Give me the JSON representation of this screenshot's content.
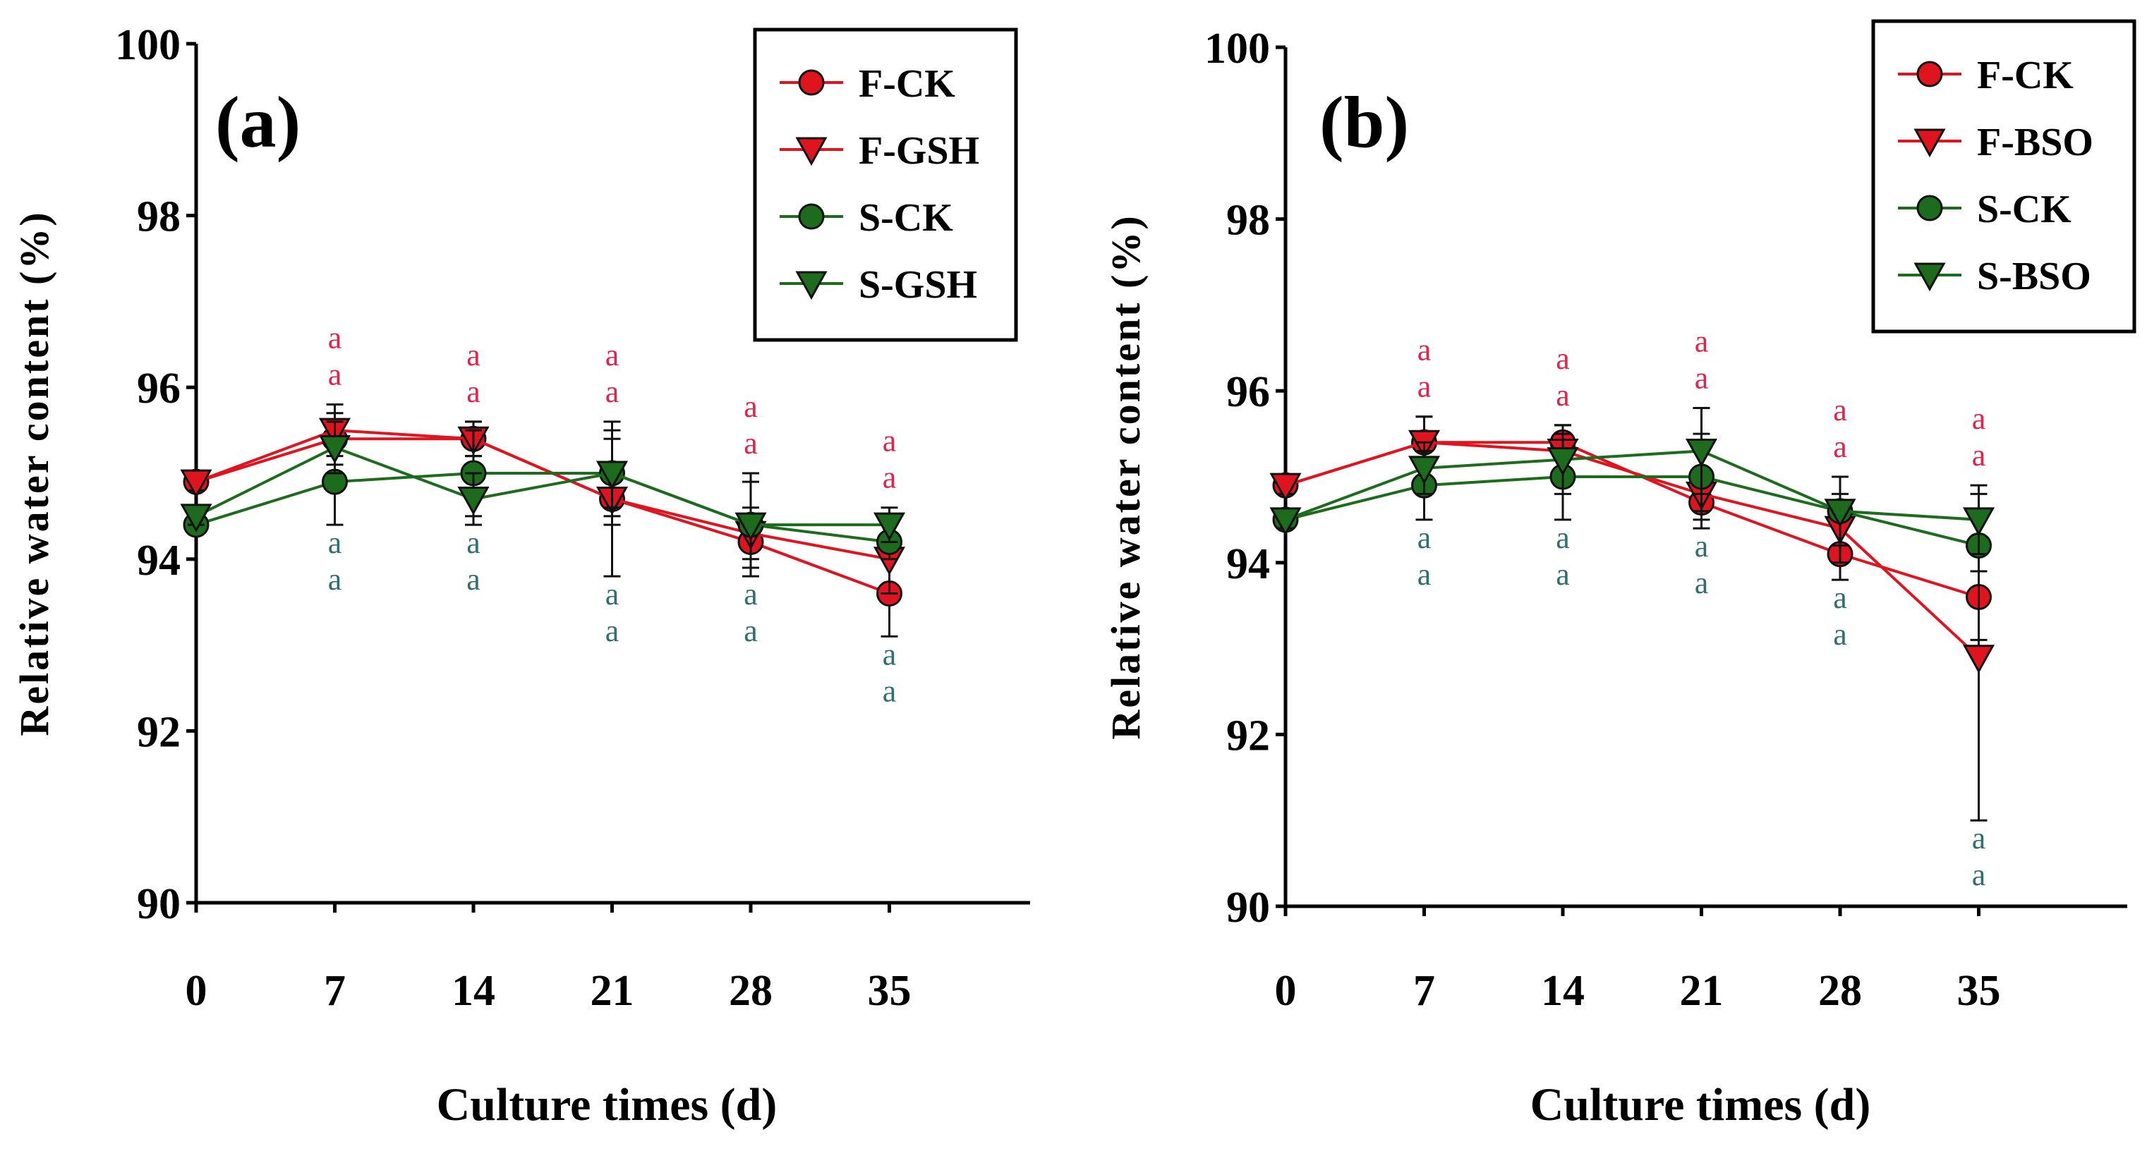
{
  "colors": {
    "F": "#e0141e",
    "S": "#1d6b1d",
    "F_letters": "#e0244a",
    "S_letters": "#2f6f6f",
    "axis": "#000000"
  },
  "chart_data": [
    {
      "type": "line",
      "panel_label": "(a)",
      "xlabel": "Culture times (d)",
      "ylabel": "Relative water content (%)",
      "x": [
        0,
        7,
        14,
        21,
        28,
        35
      ],
      "x_ticks": [
        "0",
        "7",
        "14",
        "21",
        "28",
        "35"
      ],
      "xlim": [
        0,
        42
      ],
      "y_ticks": [
        "90",
        "92",
        "94",
        "96",
        "98",
        "100"
      ],
      "ylim": [
        90,
        100
      ],
      "legend_position": "top-right",
      "series": [
        {
          "name": "F-CK",
          "marker": "circle",
          "group": "F",
          "values": [
            94.9,
            95.4,
            95.4,
            94.7,
            94.2,
            93.6
          ],
          "err": [
            0.1,
            0.3,
            0.2,
            0.3,
            0.3,
            0.5
          ]
        },
        {
          "name": "F-GSH",
          "marker": "triangle-down",
          "group": "F",
          "values": [
            94.9,
            95.5,
            95.4,
            94.7,
            94.3,
            94.0
          ],
          "err": [
            0.1,
            0.3,
            0.2,
            0.9,
            0.3,
            0.4
          ]
        },
        {
          "name": "S-CK",
          "marker": "circle",
          "group": "S",
          "values": [
            94.4,
            94.9,
            95.0,
            95.0,
            94.4,
            94.2
          ],
          "err": [
            0.1,
            0.5,
            0.5,
            0.5,
            0.6,
            0.2
          ]
        },
        {
          "name": "S-GSH",
          "marker": "triangle-down",
          "group": "S",
          "values": [
            94.5,
            95.3,
            94.7,
            95.0,
            94.4,
            94.4
          ],
          "err": [
            0.1,
            0.3,
            0.3,
            0.4,
            0.5,
            0.2
          ]
        }
      ],
      "significance": [
        {
          "x": 7,
          "top": [
            "a",
            "a"
          ],
          "bottom": [
            "a",
            "a"
          ]
        },
        {
          "x": 14,
          "top": [
            "a",
            "a"
          ],
          "bottom": [
            "a",
            "a"
          ]
        },
        {
          "x": 21,
          "top": [
            "a",
            "a"
          ],
          "bottom": [
            "a",
            "a"
          ]
        },
        {
          "x": 28,
          "top": [
            "a",
            "a"
          ],
          "bottom": [
            "a",
            "a"
          ]
        },
        {
          "x": 35,
          "top": [
            "a",
            "a"
          ],
          "bottom": [
            "a",
            "a"
          ]
        }
      ]
    },
    {
      "type": "line",
      "panel_label": "(b)",
      "xlabel": "Culture times (d)",
      "ylabel": "Relative water content (%)",
      "x": [
        0,
        7,
        14,
        21,
        28,
        35
      ],
      "x_ticks": [
        "0",
        "7",
        "14",
        "21",
        "28",
        "35"
      ],
      "xlim": [
        0,
        42
      ],
      "y_ticks": [
        "90",
        "92",
        "94",
        "96",
        "98",
        "100"
      ],
      "ylim": [
        90,
        100
      ],
      "legend_position": "top-right",
      "series": [
        {
          "name": "F-CK",
          "marker": "circle",
          "group": "F",
          "values": [
            94.9,
            95.4,
            95.4,
            94.7,
            94.1,
            93.6
          ],
          "err": [
            0.1,
            0.3,
            0.2,
            0.3,
            0.3,
            0.5
          ]
        },
        {
          "name": "F-BSO",
          "marker": "triangle-down",
          "group": "F",
          "values": [
            94.9,
            95.4,
            95.3,
            94.8,
            94.4,
            92.9
          ],
          "err": [
            0.1,
            0.3,
            0.3,
            0.2,
            0.4,
            1.9
          ]
        },
        {
          "name": "S-CK",
          "marker": "circle",
          "group": "S",
          "values": [
            94.5,
            94.9,
            95.0,
            95.0,
            94.6,
            94.2
          ],
          "err": [
            0.1,
            0.4,
            0.5,
            0.5,
            0.4,
            0.3
          ]
        },
        {
          "name": "S-BSO",
          "marker": "triangle-down",
          "group": "S",
          "values": [
            94.5,
            95.1,
            95.2,
            95.3,
            94.6,
            94.5
          ],
          "err": [
            0.1,
            0.3,
            0.4,
            0.5,
            0.4,
            0.4
          ]
        }
      ],
      "significance": [
        {
          "x": 7,
          "top": [
            "a",
            "a"
          ],
          "bottom": [
            "a",
            "a"
          ]
        },
        {
          "x": 14,
          "top": [
            "a",
            "a"
          ],
          "bottom": [
            "a",
            "a"
          ]
        },
        {
          "x": 21,
          "top": [
            "a",
            "a"
          ],
          "bottom": [
            "a",
            "a"
          ]
        },
        {
          "x": 28,
          "top": [
            "a",
            "a"
          ],
          "bottom": [
            "a",
            "a"
          ]
        },
        {
          "x": 35,
          "top": [
            "a",
            "a"
          ],
          "bottom": [
            "a",
            "a"
          ]
        }
      ]
    }
  ]
}
